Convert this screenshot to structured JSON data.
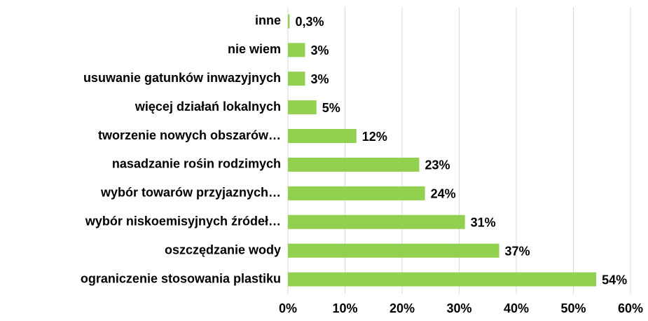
{
  "chart_data": {
    "type": "hbar",
    "categories": [
      "inne",
      "nie wiem",
      "usuwanie gatunków inwazyjnych",
      "więcej działań lokalnych",
      "tworzenie nowych obszarów…",
      "nasadzanie rośin rodzimych",
      "wybór towarów przyjaznych…",
      "wybór niskoemisyjnych źródeł…",
      "oszczędzanie wody",
      "ograniczenie stosowania plastiku"
    ],
    "values": [
      0.3,
      3,
      3,
      5,
      12,
      23,
      24,
      31,
      37,
      54
    ],
    "value_labels": [
      "0,3%",
      "3%",
      "3%",
      "5%",
      "12%",
      "23%",
      "24%",
      "31%",
      "37%",
      "54%"
    ],
    "color": "#92d050",
    "xlim": [
      0,
      60
    ],
    "xticks": [
      {
        "value": 0,
        "label": "0%"
      },
      {
        "value": 10,
        "label": "10%"
      },
      {
        "value": 20,
        "label": "20%"
      },
      {
        "value": 30,
        "label": "30%"
      },
      {
        "value": 40,
        "label": "40%"
      },
      {
        "value": 50,
        "label": "50%"
      },
      {
        "value": 60,
        "label": "60%"
      }
    ],
    "grid": true
  }
}
